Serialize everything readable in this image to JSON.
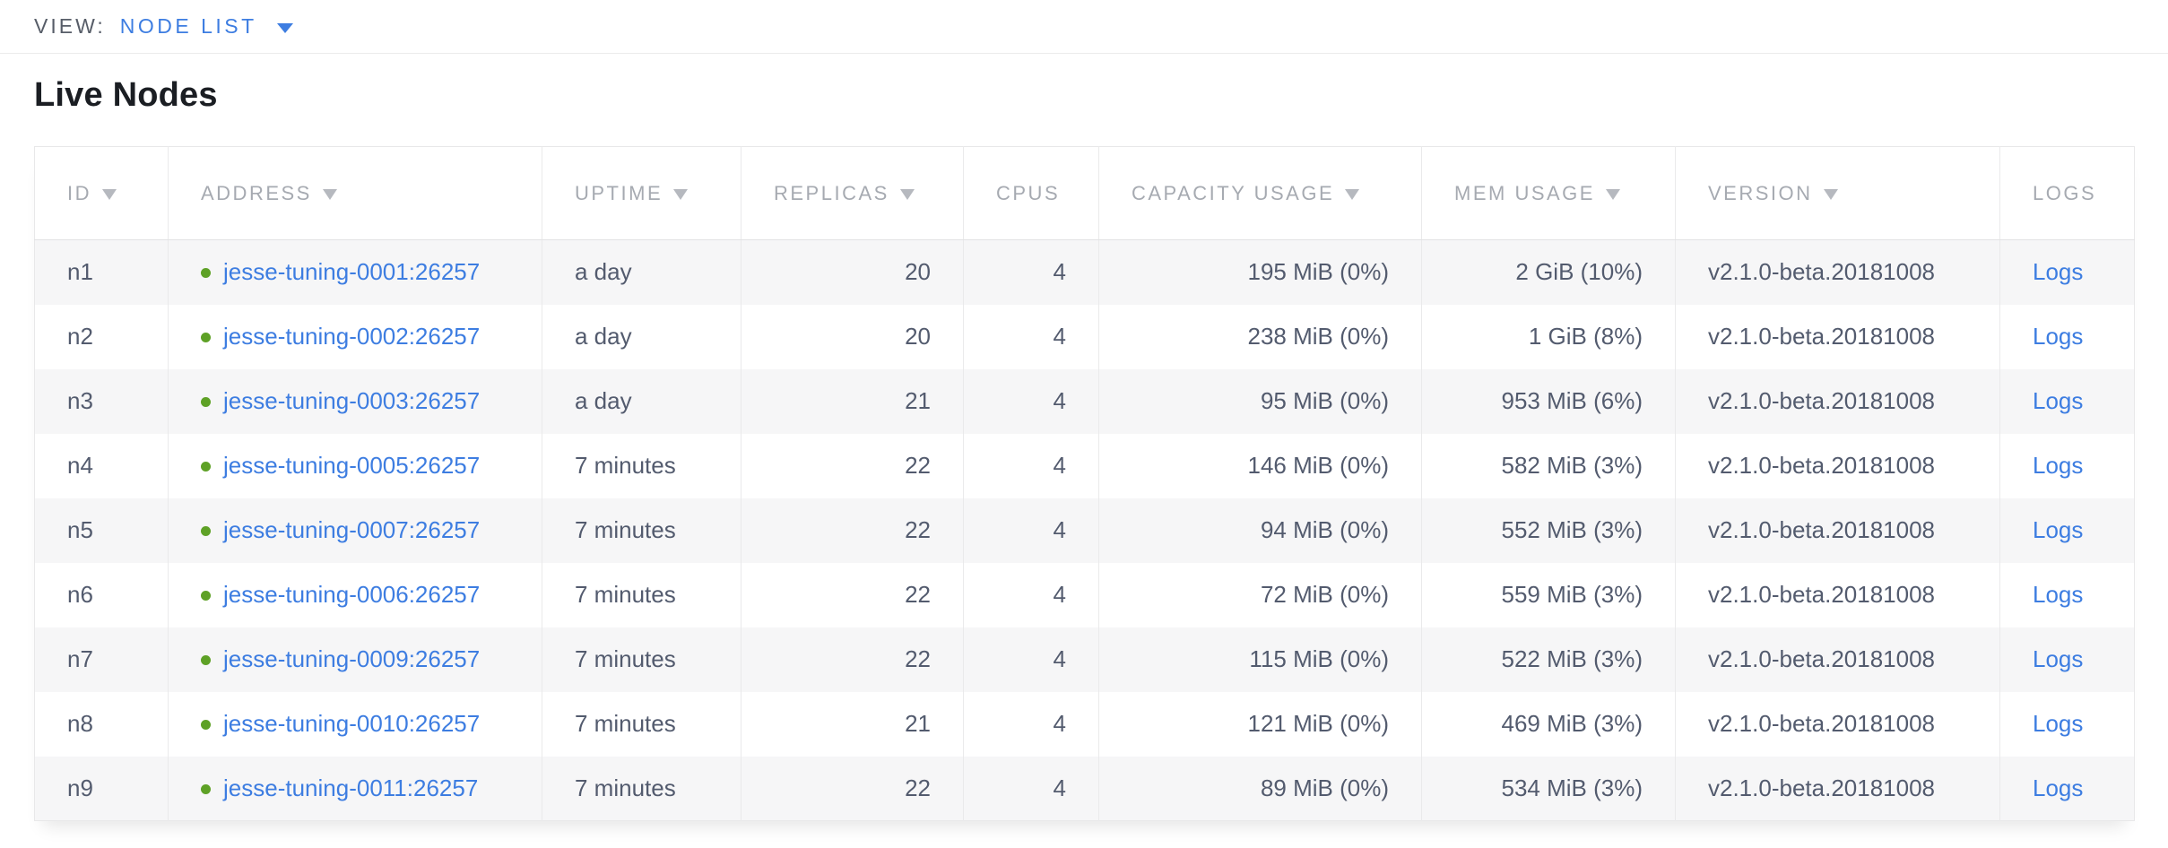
{
  "view_bar": {
    "label": "VIEW:",
    "selected_view": "NODE LIST"
  },
  "page": {
    "title": "Live Nodes"
  },
  "colors": {
    "accent_blue": "#3d7de1",
    "status_green": "#5ea126",
    "header_text_gray": "#a6aab1",
    "cell_text_slate": "#535b6e",
    "row_stripe_gray": "#f6f6f7"
  },
  "table": {
    "columns": [
      {
        "key": "id",
        "label": "ID",
        "sortable": true,
        "align": "left"
      },
      {
        "key": "address",
        "label": "ADDRESS",
        "sortable": true,
        "align": "left",
        "type": "link-dot"
      },
      {
        "key": "uptime",
        "label": "UPTIME",
        "sortable": true,
        "align": "left"
      },
      {
        "key": "replicas",
        "label": "REPLICAS",
        "sortable": true,
        "align": "right"
      },
      {
        "key": "cpus",
        "label": "CPUS",
        "sortable": false,
        "align": "right"
      },
      {
        "key": "capacity",
        "label": "CAPACITY USAGE",
        "sortable": true,
        "align": "right"
      },
      {
        "key": "mem",
        "label": "MEM USAGE",
        "sortable": true,
        "align": "right"
      },
      {
        "key": "version",
        "label": "VERSION",
        "sortable": true,
        "align": "left"
      },
      {
        "key": "logs",
        "label": "LOGS",
        "sortable": false,
        "align": "left",
        "type": "link"
      }
    ],
    "rows": [
      {
        "id": "n1",
        "address": "jesse-tuning-0001:26257",
        "uptime": "a day",
        "replicas": "20",
        "cpus": "4",
        "capacity": "195 MiB (0%)",
        "mem": "2 GiB (10%)",
        "version": "v2.1.0-beta.20181008",
        "logs": "Logs"
      },
      {
        "id": "n2",
        "address": "jesse-tuning-0002:26257",
        "uptime": "a day",
        "replicas": "20",
        "cpus": "4",
        "capacity": "238 MiB (0%)",
        "mem": "1 GiB (8%)",
        "version": "v2.1.0-beta.20181008",
        "logs": "Logs"
      },
      {
        "id": "n3",
        "address": "jesse-tuning-0003:26257",
        "uptime": "a day",
        "replicas": "21",
        "cpus": "4",
        "capacity": "95 MiB (0%)",
        "mem": "953 MiB (6%)",
        "version": "v2.1.0-beta.20181008",
        "logs": "Logs"
      },
      {
        "id": "n4",
        "address": "jesse-tuning-0005:26257",
        "uptime": "7 minutes",
        "replicas": "22",
        "cpus": "4",
        "capacity": "146 MiB (0%)",
        "mem": "582 MiB (3%)",
        "version": "v2.1.0-beta.20181008",
        "logs": "Logs"
      },
      {
        "id": "n5",
        "address": "jesse-tuning-0007:26257",
        "uptime": "7 minutes",
        "replicas": "22",
        "cpus": "4",
        "capacity": "94 MiB (0%)",
        "mem": "552 MiB (3%)",
        "version": "v2.1.0-beta.20181008",
        "logs": "Logs"
      },
      {
        "id": "n6",
        "address": "jesse-tuning-0006:26257",
        "uptime": "7 minutes",
        "replicas": "22",
        "cpus": "4",
        "capacity": "72 MiB (0%)",
        "mem": "559 MiB (3%)",
        "version": "v2.1.0-beta.20181008",
        "logs": "Logs"
      },
      {
        "id": "n7",
        "address": "jesse-tuning-0009:26257",
        "uptime": "7 minutes",
        "replicas": "22",
        "cpus": "4",
        "capacity": "115 MiB (0%)",
        "mem": "522 MiB (3%)",
        "version": "v2.1.0-beta.20181008",
        "logs": "Logs"
      },
      {
        "id": "n8",
        "address": "jesse-tuning-0010:26257",
        "uptime": "7 minutes",
        "replicas": "21",
        "cpus": "4",
        "capacity": "121 MiB (0%)",
        "mem": "469 MiB (3%)",
        "version": "v2.1.0-beta.20181008",
        "logs": "Logs"
      },
      {
        "id": "n9",
        "address": "jesse-tuning-0011:26257",
        "uptime": "7 minutes",
        "replicas": "22",
        "cpus": "4",
        "capacity": "89 MiB (0%)",
        "mem": "534 MiB (3%)",
        "version": "v2.1.0-beta.20181008",
        "logs": "Logs"
      }
    ]
  }
}
